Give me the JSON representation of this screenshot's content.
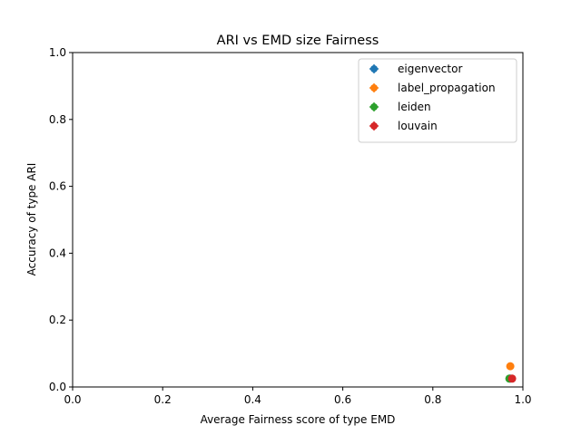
{
  "chart_data": {
    "type": "scatter",
    "title": "ARI vs EMD size Fairness",
    "xlabel": "Average Fairness score of type EMD",
    "ylabel": "Accuracy of type ARI",
    "xlim": [
      0.0,
      1.0
    ],
    "ylim": [
      0.0,
      1.0
    ],
    "xticks": [
      "0.0",
      "0.2",
      "0.4",
      "0.6",
      "0.8",
      "1.0"
    ],
    "yticks": [
      "0.0",
      "0.2",
      "0.4",
      "0.6",
      "0.8",
      "1.0"
    ],
    "grid": false,
    "legend_position": "top-right",
    "series": [
      {
        "name": "eigenvector",
        "color": "#1f77b4",
        "x": 0.972,
        "y": 0.025
      },
      {
        "name": "label_propagation",
        "color": "#ff7f0e",
        "x": 0.972,
        "y": 0.062
      },
      {
        "name": "leiden",
        "color": "#2ca02c",
        "x": 0.97,
        "y": 0.025
      },
      {
        "name": "louvain",
        "color": "#d62728",
        "x": 0.976,
        "y": 0.025
      }
    ]
  }
}
